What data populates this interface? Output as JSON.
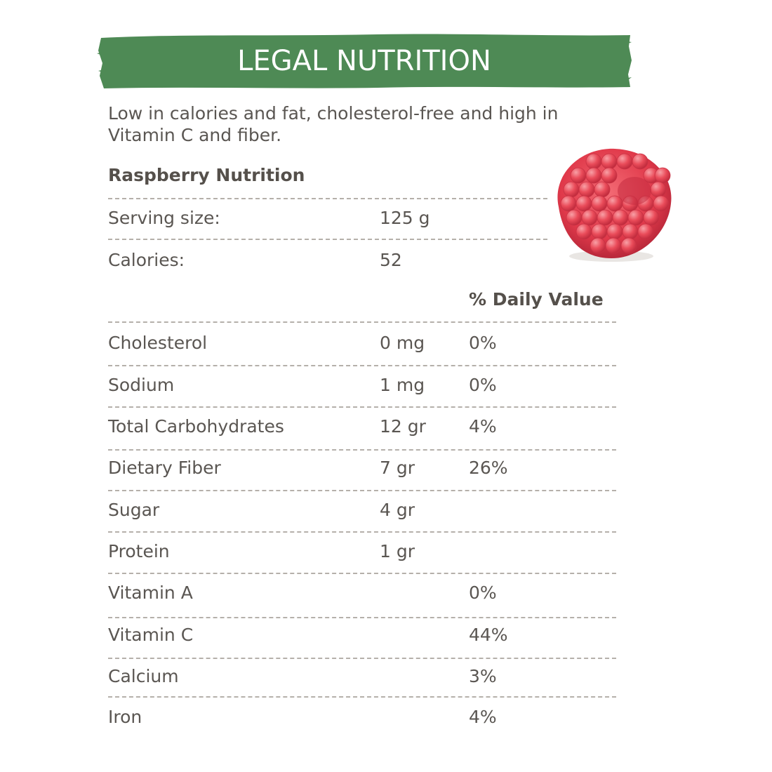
{
  "banner": {
    "title": "LEGAL NUTRITION",
    "color": "#4e8a55"
  },
  "intro": "Low in calories and fat, cholesterol-free and high in Vitamin C and fiber.",
  "section_title": "Raspberry Nutrition",
  "serving": {
    "label": "Serving size:",
    "value": "125 g"
  },
  "calories": {
    "label": "Calories:",
    "value": "52"
  },
  "daily_value_header": "% Daily Value",
  "nutrients": [
    {
      "name": "Cholesterol",
      "amount": "0 mg",
      "dv": "0%"
    },
    {
      "name": "Sodium",
      "amount": "1 mg",
      "dv": "0%"
    },
    {
      "name": "Total Carbohydrates",
      "amount": "12 gr",
      "dv": "4%"
    },
    {
      "name": "Dietary Fiber",
      "amount": "7 gr",
      "dv": "26%"
    },
    {
      "name": "Sugar",
      "amount": "4 gr",
      "dv": ""
    },
    {
      "name": "Protein",
      "amount": "1 gr",
      "dv": ""
    },
    {
      "name": "Vitamin A",
      "amount": "",
      "dv": "0%"
    },
    {
      "name": "Vitamin C",
      "amount": "",
      "dv": "44%"
    },
    {
      "name": "Calcium",
      "amount": "",
      "dv": "3%"
    },
    {
      "name": "Iron",
      "amount": "",
      "dv": "4%"
    }
  ],
  "image": {
    "icon": "raspberry-icon",
    "color": "#e8414f"
  }
}
